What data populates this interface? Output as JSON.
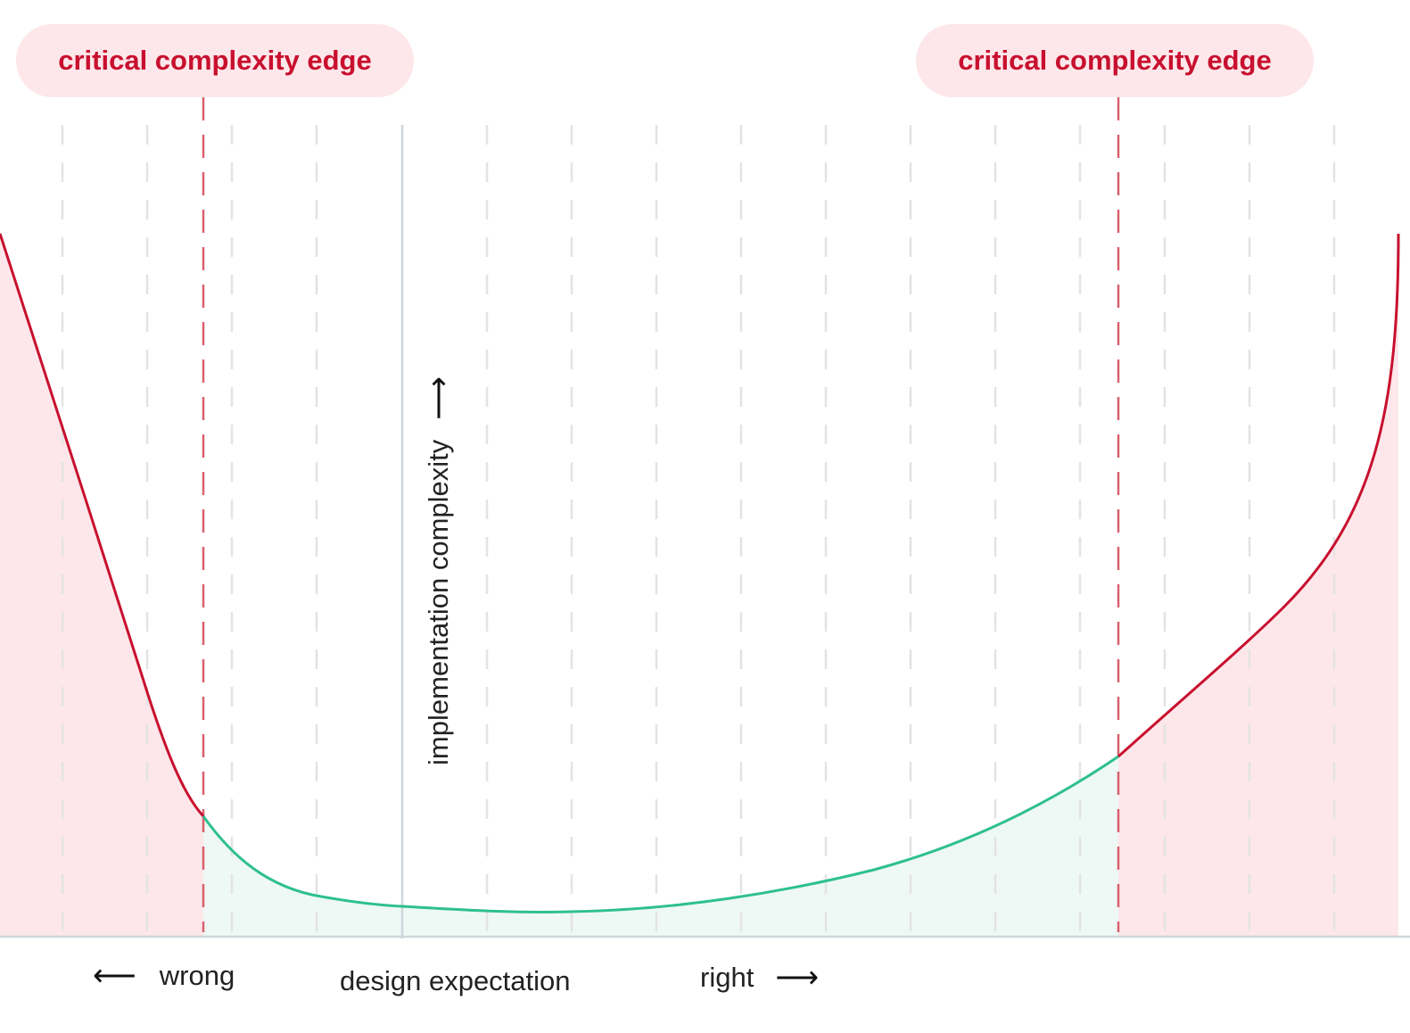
{
  "labels": {
    "edge_left": "critical complexity edge",
    "edge_right": "critical complexity edge",
    "y_axis": "implementation complexity",
    "x_left": "wrong",
    "x_center": "design expectation",
    "x_right": "right"
  },
  "icons": {
    "left_arrow": "arrow-left-icon",
    "right_arrow": "arrow-right-icon",
    "up_arrow": "arrow-up-icon"
  },
  "colors": {
    "critical": "#c8102e",
    "critical_fill": "#fde7ea",
    "safe": "#2ec08e",
    "safe_fill": "#eef8f4",
    "grid": "#e3e3e3",
    "axis": "#cfd6da"
  }
}
